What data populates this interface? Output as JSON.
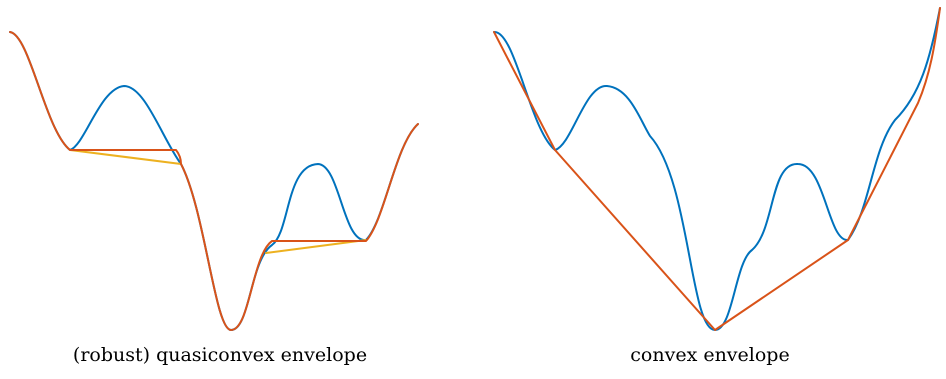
{
  "panels": [
    {
      "caption": "(robust) quasiconvex envelope"
    },
    {
      "caption": "convex envelope"
    }
  ],
  "colors": {
    "function": "#0072BD",
    "envelope": "#D95319",
    "robust_envelope": "#EDB120"
  }
}
